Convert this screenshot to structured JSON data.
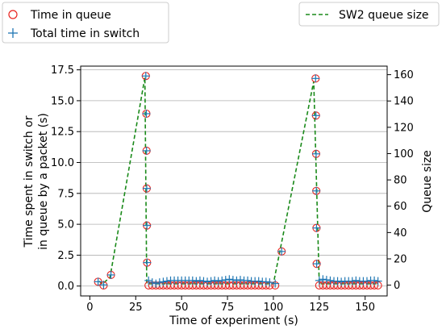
{
  "chart_data": {
    "type": "scatter",
    "xlabel": "Time of experiment (s)",
    "ylabel_left": [
      "Time spent in switch or",
      "in queue by a packet (s)"
    ],
    "ylabel_right": "Queue size",
    "xlim": [
      -5,
      162
    ],
    "ylim_left": [
      -0.8,
      17.8
    ],
    "ylim_right": [
      -8.2,
      166.5
    ],
    "xticks": [
      0,
      25,
      50,
      75,
      100,
      125,
      150
    ],
    "yticks_left": [
      0.0,
      2.5,
      5.0,
      7.5,
      10.0,
      12.5,
      15.0,
      17.5
    ],
    "yticks_left_labels": [
      "0.0",
      "2.5",
      "5.0",
      "7.5",
      "10.0",
      "12.5",
      "15.0",
      "17.5"
    ],
    "yticks_right": [
      0,
      20,
      40,
      60,
      80,
      100,
      120,
      140,
      160
    ],
    "grid": "horizontal",
    "series": [
      {
        "name": "Time in queue",
        "marker": "circle",
        "color": "#e8231f",
        "points": [
          [
            4.5,
            0.35
          ],
          [
            7.5,
            0.05
          ],
          [
            11.5,
            0.9
          ],
          [
            30.5,
            17.0
          ],
          [
            30.8,
            13.95
          ],
          [
            30.9,
            10.95
          ],
          [
            31.0,
            7.9
          ],
          [
            31.1,
            4.9
          ],
          [
            31.2,
            1.9
          ],
          [
            32,
            0.05
          ],
          [
            34,
            0.05
          ],
          [
            36,
            0.05
          ],
          [
            38,
            0.05
          ],
          [
            40,
            0.05
          ],
          [
            42,
            0.05
          ],
          [
            44,
            0.05
          ],
          [
            46,
            0.05
          ],
          [
            48,
            0.05
          ],
          [
            50,
            0.05
          ],
          [
            52,
            0.05
          ],
          [
            54,
            0.05
          ],
          [
            56,
            0.05
          ],
          [
            58,
            0.05
          ],
          [
            60,
            0.05
          ],
          [
            62,
            0.05
          ],
          [
            64,
            0.05
          ],
          [
            66,
            0.05
          ],
          [
            68,
            0.05
          ],
          [
            70,
            0.05
          ],
          [
            72,
            0.05
          ],
          [
            74,
            0.05
          ],
          [
            76,
            0.05
          ],
          [
            78,
            0.05
          ],
          [
            80,
            0.05
          ],
          [
            82,
            0.05
          ],
          [
            84,
            0.05
          ],
          [
            86,
            0.05
          ],
          [
            88,
            0.05
          ],
          [
            90,
            0.05
          ],
          [
            92,
            0.05
          ],
          [
            94,
            0.05
          ],
          [
            96,
            0.05
          ],
          [
            98,
            0.05
          ],
          [
            101,
            0.05
          ],
          [
            104.5,
            2.8
          ],
          [
            123,
            16.8
          ],
          [
            123.2,
            13.8
          ],
          [
            123.3,
            10.7
          ],
          [
            123.4,
            7.7
          ],
          [
            123.5,
            4.7
          ],
          [
            123.6,
            1.8
          ],
          [
            125,
            0.05
          ],
          [
            127,
            0.05
          ],
          [
            129,
            0.05
          ],
          [
            131,
            0.05
          ],
          [
            133,
            0.05
          ],
          [
            135,
            0.05
          ],
          [
            137,
            0.05
          ],
          [
            139,
            0.05
          ],
          [
            141,
            0.05
          ],
          [
            143,
            0.05
          ],
          [
            145,
            0.05
          ],
          [
            147,
            0.05
          ],
          [
            149,
            0.05
          ],
          [
            151,
            0.05
          ],
          [
            153,
            0.05
          ],
          [
            155,
            0.05
          ],
          [
            157,
            0.05
          ]
        ]
      },
      {
        "name": "Total time in switch",
        "marker": "plus",
        "color": "#1f77b4",
        "points": [
          [
            4.5,
            0.35
          ],
          [
            7.5,
            0.1
          ],
          [
            11.5,
            0.9
          ],
          [
            30.5,
            17.0
          ],
          [
            30.8,
            13.95
          ],
          [
            30.9,
            10.95
          ],
          [
            31.0,
            7.9
          ],
          [
            31.1,
            4.9
          ],
          [
            31.2,
            1.9
          ],
          [
            32,
            0.45
          ],
          [
            34,
            0.3
          ],
          [
            36,
            0.2
          ],
          [
            38,
            0.3
          ],
          [
            40,
            0.35
          ],
          [
            42,
            0.4
          ],
          [
            44,
            0.45
          ],
          [
            46,
            0.45
          ],
          [
            48,
            0.45
          ],
          [
            50,
            0.45
          ],
          [
            52,
            0.45
          ],
          [
            54,
            0.45
          ],
          [
            56,
            0.45
          ],
          [
            58,
            0.4
          ],
          [
            60,
            0.45
          ],
          [
            62,
            0.4
          ],
          [
            64,
            0.35
          ],
          [
            66,
            0.4
          ],
          [
            68,
            0.45
          ],
          [
            70,
            0.4
          ],
          [
            72,
            0.45
          ],
          [
            74,
            0.5
          ],
          [
            76,
            0.55
          ],
          [
            78,
            0.5
          ],
          [
            80,
            0.45
          ],
          [
            82,
            0.5
          ],
          [
            84,
            0.45
          ],
          [
            86,
            0.45
          ],
          [
            88,
            0.4
          ],
          [
            90,
            0.4
          ],
          [
            92,
            0.4
          ],
          [
            94,
            0.35
          ],
          [
            96,
            0.35
          ],
          [
            98,
            0.3
          ],
          [
            101,
            0.2
          ],
          [
            104.5,
            2.8
          ],
          [
            123,
            16.8
          ],
          [
            123.2,
            13.8
          ],
          [
            123.3,
            10.7
          ],
          [
            123.4,
            7.7
          ],
          [
            123.5,
            4.7
          ],
          [
            123.6,
            1.8
          ],
          [
            125,
            0.45
          ],
          [
            127,
            0.55
          ],
          [
            129,
            0.5
          ],
          [
            131,
            0.45
          ],
          [
            133,
            0.4
          ],
          [
            135,
            0.4
          ],
          [
            137,
            0.35
          ],
          [
            139,
            0.4
          ],
          [
            141,
            0.4
          ],
          [
            143,
            0.4
          ],
          [
            145,
            0.45
          ],
          [
            147,
            0.4
          ],
          [
            149,
            0.4
          ],
          [
            151,
            0.4
          ],
          [
            153,
            0.45
          ],
          [
            155,
            0.45
          ],
          [
            157,
            0.4
          ]
        ]
      },
      {
        "name": "SW2 queue size",
        "marker": "line",
        "style": "dashed",
        "color": "#1a8a1a",
        "axis": "right",
        "points": [
          [
            5,
            3
          ],
          [
            7,
            1
          ],
          [
            11,
            6
          ],
          [
            30,
            158
          ],
          [
            31,
            1
          ],
          [
            32,
            1
          ],
          [
            100,
            1
          ],
          [
            122,
            155
          ],
          [
            125,
            1
          ],
          [
            157,
            1
          ]
        ]
      }
    ],
    "legend_left_placement": "top-left",
    "legend_right_placement": "top-right"
  }
}
